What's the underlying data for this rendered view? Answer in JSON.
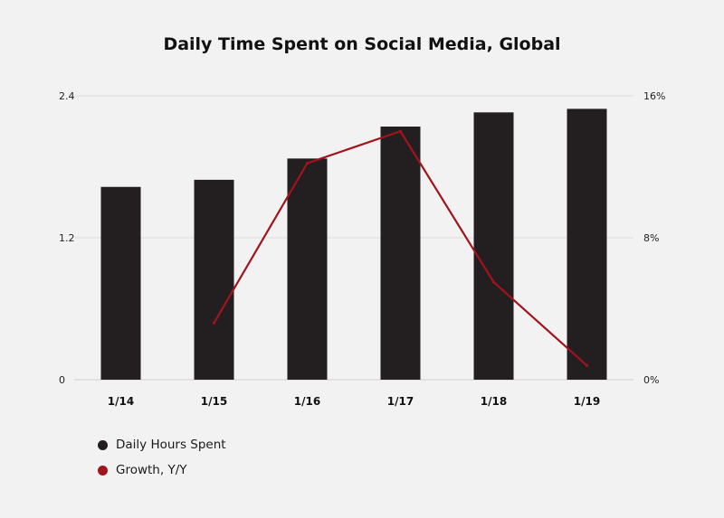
{
  "chart_data": {
    "type": "bar",
    "title": "Daily Time Spent on Social Media, Global",
    "categories": [
      "1/14",
      "1/15",
      "1/16",
      "1/17",
      "1/18",
      "1/19"
    ],
    "series": [
      {
        "name": "Daily Hours Spent",
        "type": "bar",
        "axis": "left",
        "color": "#231f20",
        "values": [
          1.63,
          1.69,
          1.87,
          2.14,
          2.26,
          2.29
        ]
      },
      {
        "name": "Growth, Y/Y",
        "type": "line",
        "axis": "right",
        "color": "#a1141c",
        "values": [
          null,
          3.2,
          12.2,
          14.0,
          5.5,
          0.8
        ]
      }
    ],
    "ylim_left": [
      0,
      2.4
    ],
    "yticks_left": [
      {
        "value": 0,
        "label": "0"
      },
      {
        "value": 1.2,
        "label": "1.2"
      },
      {
        "value": 2.4,
        "label": "2.4"
      }
    ],
    "ylim_right": [
      0,
      16
    ],
    "yticks_right": [
      {
        "value": 0,
        "label": "0%"
      },
      {
        "value": 8,
        "label": "8%"
      },
      {
        "value": 16,
        "label": "16%"
      }
    ],
    "grid": true,
    "legend_position": "bottom-left"
  }
}
